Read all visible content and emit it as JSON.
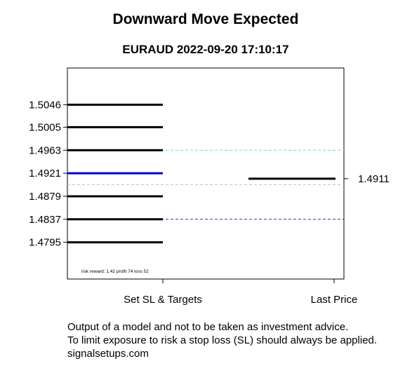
{
  "chart_data": {
    "type": "line",
    "title": "Downward Move Expected",
    "subtitle": "EURAUD 2022-09-20 17:10:17",
    "categories": [
      "Set SL & Targets",
      "Last Price"
    ],
    "levels": [
      1.5046,
      1.5005,
      1.4963,
      1.4921,
      1.4879,
      1.4837,
      1.4795
    ],
    "level_labels": [
      "1.5046",
      "1.5005",
      "1.4963",
      "1.4921",
      "1.4879",
      "1.4837",
      "1.4795"
    ],
    "entry_level": 1.4921,
    "last_price": 1.4911,
    "last_price_label": "1.4911",
    "dashed_lines": [
      {
        "value": 1.4963,
        "color": "#66dddd"
      },
      {
        "value": 1.49,
        "color": "#aacccc"
      },
      {
        "value": 1.4837,
        "color": "#333399"
      }
    ],
    "ylim": [
      1.4728,
      1.5113
    ],
    "note": "risk reward: 1.42 profit 74 loss 52",
    "colors": {
      "level": "#000000",
      "entry": "#0000cc",
      "last_price": "#000000"
    }
  },
  "footer": {
    "line1": "Output of a model and not to be taken as investment advice.",
    "line2": "To limit exposure to risk a stop loss (SL) should always be applied.",
    "line3": "signalsetups.com"
  }
}
